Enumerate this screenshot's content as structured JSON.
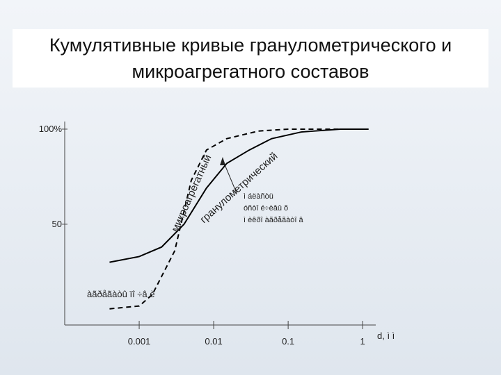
{
  "title": "Кумулятивные кривые гранулометрического и микроагрегатного составов",
  "chart_data": {
    "type": "line",
    "xscale": "log",
    "x_label": "d, ì ì",
    "xlim": [
      0.0001,
      1.5
    ],
    "xticks": [
      0.001,
      0.01,
      0.1,
      1
    ],
    "ylim": [
      -3,
      104
    ],
    "yticks": [
      50,
      {
        "value": 100,
        "label": "100%"
      }
    ],
    "series": [
      {
        "name": "гранулометрический",
        "color": "#000000",
        "dash": false,
        "x": [
          0.0004,
          0.001,
          0.002,
          0.004,
          0.008,
          0.015,
          0.03,
          0.06,
          0.15,
          0.5,
          1.2
        ],
        "values": [
          30,
          33,
          38,
          50,
          69,
          82,
          89,
          95,
          98.5,
          100,
          100
        ]
      },
      {
        "name": "микроагрегатный",
        "color": "#000000",
        "dash": true,
        "x": [
          0.0004,
          0.001,
          0.0015,
          0.003,
          0.005,
          0.008,
          0.015,
          0.04,
          0.1,
          1.2
        ],
        "values": [
          5.5,
          7,
          13,
          36,
          73,
          89,
          95,
          99,
          100,
          100
        ]
      }
    ],
    "annotations": [
      "ì áëàñòü",
      "óñòî é÷èâû õ",
      "ì èêðî àãðåãàòî â",
      "àãðåãàòû ïî ÷â è"
    ]
  }
}
